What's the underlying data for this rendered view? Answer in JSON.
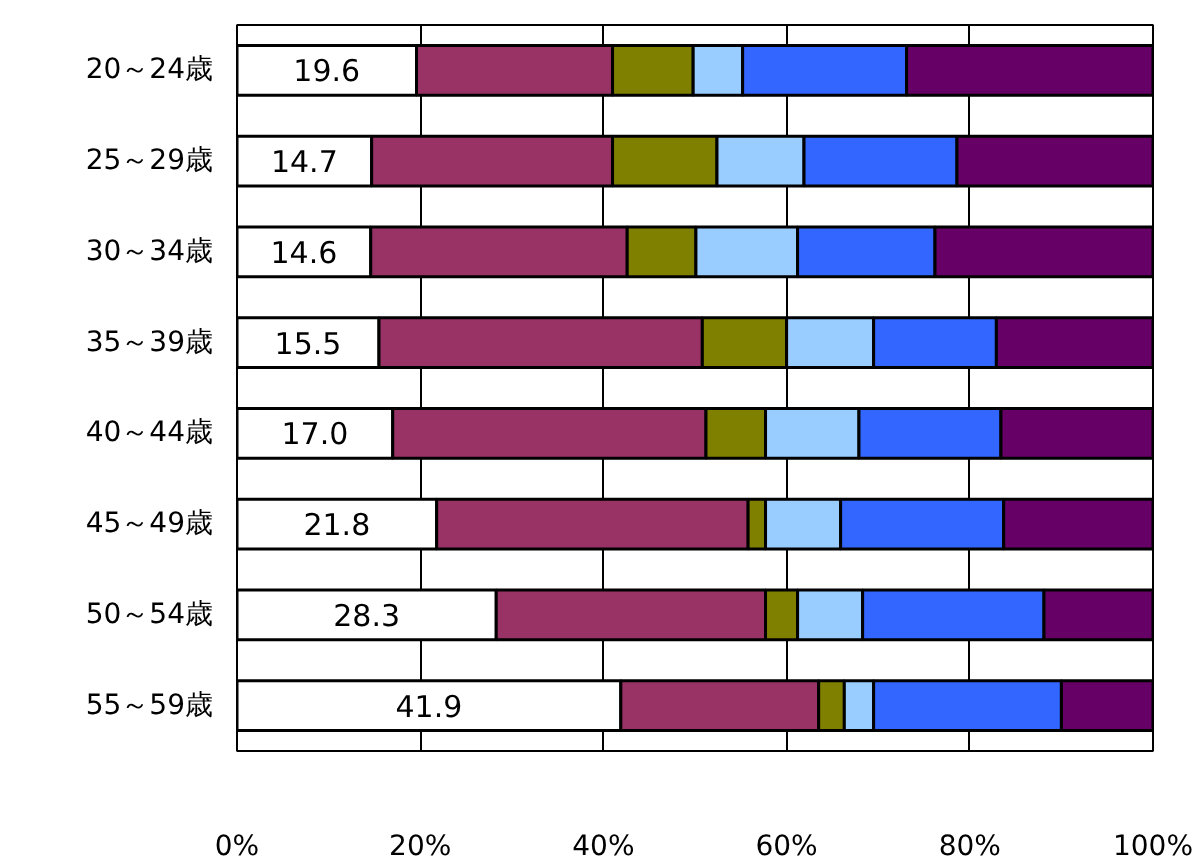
{
  "chart_data": {
    "type": "bar",
    "orientation": "horizontal",
    "stacked": true,
    "categories": [
      "20～24歳",
      "25～29歳",
      "30～34歳",
      "35～39歳",
      "40～44歳",
      "45～49歳",
      "50～54歳",
      "55～59歳"
    ],
    "series": [
      {
        "color": "#ffffff",
        "values": [
          19.6,
          14.7,
          14.6,
          15.5,
          17.0,
          21.8,
          28.3,
          41.9
        ],
        "value_labels": [
          "19.6",
          "14.7",
          "14.6",
          "15.5",
          "17.0",
          "21.8",
          "28.3",
          "41.9"
        ]
      },
      {
        "color": "#993366",
        "values": [
          21.4,
          26.3,
          28.0,
          35.3,
          34.2,
          34.0,
          29.4,
          21.6
        ]
      },
      {
        "color": "#808000",
        "values": [
          8.8,
          11.4,
          7.5,
          9.2,
          6.5,
          1.9,
          3.5,
          2.8
        ]
      },
      {
        "color": "#99ccff",
        "values": [
          5.4,
          9.5,
          11.1,
          9.5,
          10.2,
          8.2,
          7.1,
          3.2
        ]
      },
      {
        "color": "#3366ff",
        "values": [
          17.9,
          16.7,
          15.0,
          13.4,
          15.5,
          17.8,
          19.8,
          20.5
        ]
      },
      {
        "color": "#660066",
        "values": [
          26.9,
          21.4,
          23.8,
          17.1,
          16.6,
          16.3,
          11.9,
          10.0
        ]
      }
    ],
    "xlim": [
      0,
      100
    ],
    "xticks": [
      {
        "value": 0,
        "label": "0%"
      },
      {
        "value": 20,
        "label": "20%"
      },
      {
        "value": 40,
        "label": "40%"
      },
      {
        "value": 60,
        "label": "60%"
      },
      {
        "value": 80,
        "label": "80%"
      },
      {
        "value": 100,
        "label": "100%"
      }
    ],
    "grid": "x"
  }
}
